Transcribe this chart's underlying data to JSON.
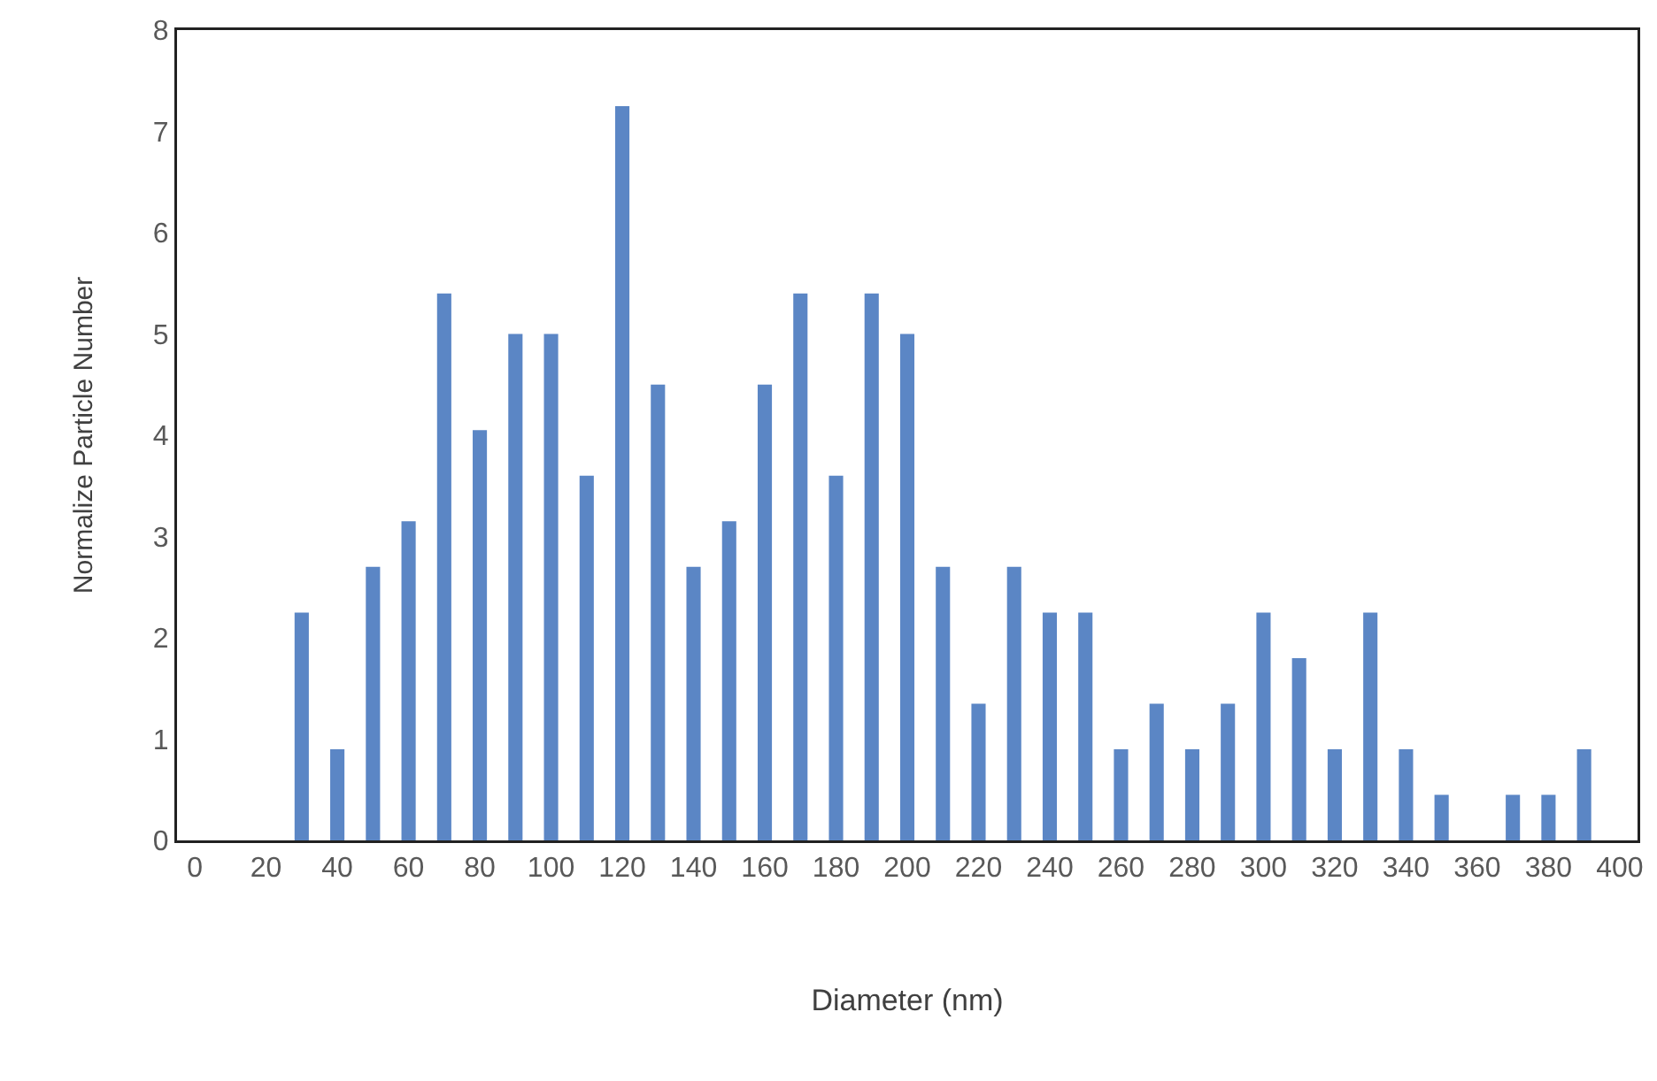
{
  "chart_data": {
    "type": "bar",
    "xlabel": "Diameter (nm)",
    "ylabel": "Normalize Particle Number",
    "categories": [
      "0",
      null,
      "20",
      null,
      "40",
      null,
      "60",
      null,
      "80",
      null,
      "100",
      null,
      "120",
      null,
      "140",
      null,
      "160",
      null,
      "180",
      null,
      "200",
      null,
      "220",
      null,
      "240",
      null,
      "260",
      null,
      "280",
      null,
      "300",
      null,
      "320",
      null,
      "340",
      null,
      "360",
      null,
      "380",
      null,
      "400"
    ],
    "values": [
      0,
      0,
      0,
      2.25,
      0.9,
      2.7,
      3.15,
      5.4,
      4.05,
      5.0,
      5.0,
      3.6,
      7.25,
      4.5,
      2.7,
      3.15,
      4.5,
      5.4,
      3.6,
      5.4,
      5.0,
      2.7,
      1.35,
      2.7,
      2.25,
      2.25,
      0.9,
      1.35,
      0.9,
      1.35,
      2.25,
      1.8,
      0.9,
      2.25,
      0.9,
      0.45,
      0,
      0.45,
      0.45,
      0.9,
      0
    ],
    "color": "#5b86c5",
    "ylim": [
      0,
      8
    ],
    "yticks": [
      0,
      1,
      2,
      3,
      4,
      5,
      6,
      7,
      8
    ],
    "grid": false,
    "legend": false
  }
}
